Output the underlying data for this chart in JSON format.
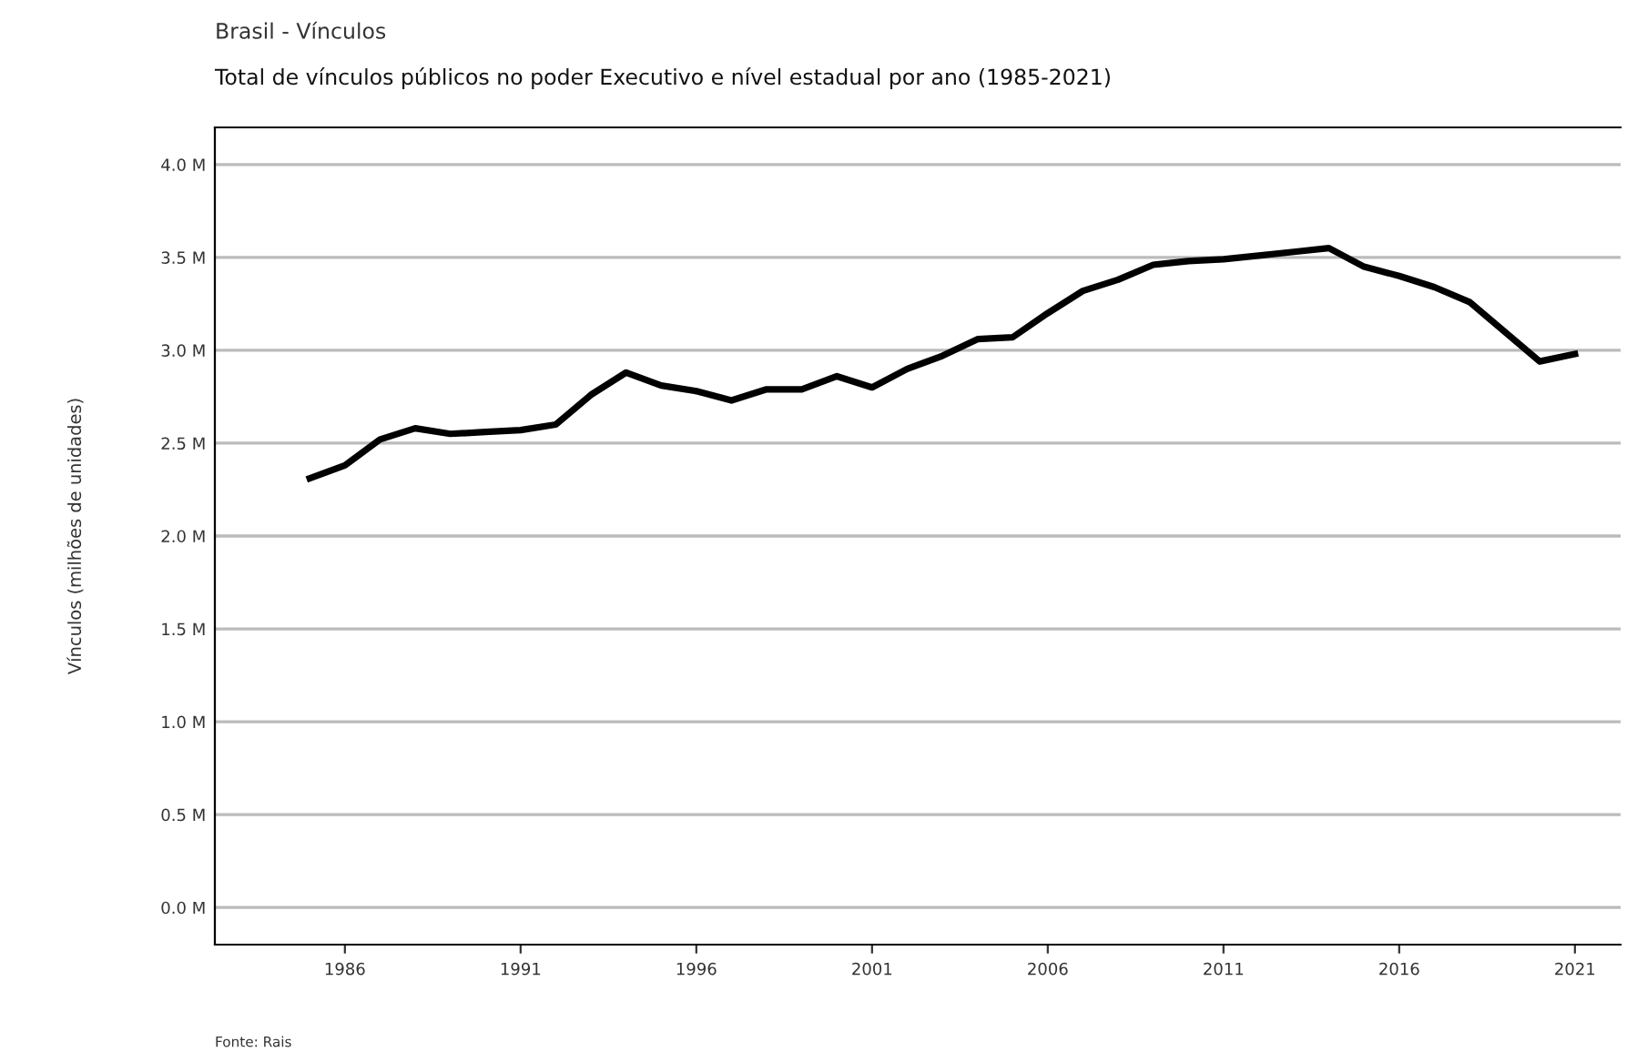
{
  "chart_data": {
    "type": "line",
    "title": "Brasil - Vínculos",
    "subtitle": "Total de vínculos públicos no poder Executivo e nível estadual por ano (1985-2021)",
    "ylabel": "Vínculos (milhões de unidades)",
    "annotations": [
      "Fonte: Rais"
    ],
    "x": [
      1985,
      1986,
      1987,
      1988,
      1989,
      1990,
      1991,
      1992,
      1993,
      1994,
      1995,
      1996,
      1997,
      1998,
      1999,
      2000,
      2001,
      2002,
      2003,
      2004,
      2005,
      2006,
      2007,
      2008,
      2009,
      2010,
      2011,
      2012,
      2013,
      2014,
      2015,
      2016,
      2017,
      2018,
      2019,
      2020,
      2021
    ],
    "series": [
      {
        "color": "#000000",
        "values": [
          2.31,
          2.38,
          2.52,
          2.58,
          2.55,
          2.56,
          2.57,
          2.6,
          2.76,
          2.88,
          2.81,
          2.78,
          2.73,
          2.79,
          2.79,
          2.86,
          2.8,
          2.9,
          2.97,
          3.06,
          3.07,
          3.2,
          3.32,
          3.38,
          3.46,
          3.48,
          3.49,
          3.51,
          3.53,
          3.55,
          3.45,
          3.4,
          3.34,
          3.26,
          3.1,
          2.94,
          2.98
        ]
      }
    ],
    "xlim": [
      1982.3,
      2022.3
    ],
    "xticks": [
      1986,
      1991,
      1996,
      2001,
      2006,
      2011,
      2016,
      2021
    ],
    "ylim": [
      -0.2,
      4.2
    ],
    "yticks": [
      {
        "value": 0,
        "label": "0.0 M"
      },
      {
        "value": 0.5,
        "label": "0.5 M"
      },
      {
        "value": 1,
        "label": "1.0 M"
      },
      {
        "value": 1.5,
        "label": "1.5 M"
      },
      {
        "value": 2,
        "label": "2.0 M"
      },
      {
        "value": 2.5,
        "label": "2.5 M"
      },
      {
        "value": 3,
        "label": "3.0 M"
      },
      {
        "value": 3.5,
        "label": "3.5 M"
      },
      {
        "value": 4,
        "label": "4.0 M"
      }
    ],
    "grid": "y",
    "line_style": "solid"
  }
}
